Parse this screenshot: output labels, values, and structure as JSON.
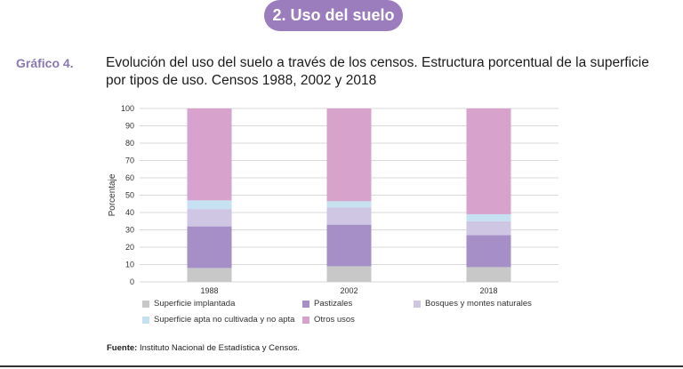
{
  "header": {
    "section_title": "2. Uso del suelo"
  },
  "figure": {
    "label": "Gráfico 4.",
    "title": "Evolución del uso del suelo a través de los censos. Estructura porcentual de la superficie por tipos de uso. Censos 1988, 2002 y 2018"
  },
  "source": {
    "prefix": "Fuente:",
    "text": "Instituto Nacional de Estadística y Censos."
  },
  "colors": {
    "implantada": "#c8c8c8",
    "pastizales": "#a58fc6",
    "bosques": "#cfc6e3",
    "apta": "#c5e1f2",
    "otros": "#d7a3cd",
    "grid": "#cccccc"
  },
  "chart_data": {
    "type": "bar",
    "stacked": true,
    "categories": [
      "1988",
      "2002",
      "2018"
    ],
    "ylabel": "Porcentaje",
    "ylim": [
      0,
      100
    ],
    "yticks": [
      0,
      10,
      20,
      30,
      40,
      50,
      60,
      70,
      80,
      90,
      100
    ],
    "grid": true,
    "legend_position": "bottom",
    "series": [
      {
        "name": "Superficie implantada",
        "color_key": "implantada",
        "values": [
          8,
          9,
          8.5
        ]
      },
      {
        "name": "Pastizales",
        "color_key": "pastizales",
        "values": [
          24,
          24,
          18.5
        ]
      },
      {
        "name": "Bosques y montes naturales",
        "color_key": "bosques",
        "values": [
          10,
          10,
          8
        ]
      },
      {
        "name": "Superficie apta no cultivada y no apta",
        "color_key": "apta",
        "values": [
          5,
          3.5,
          4
        ]
      },
      {
        "name": "Otros usos",
        "color_key": "otros",
        "values": [
          53,
          53.5,
          61
        ]
      }
    ]
  }
}
